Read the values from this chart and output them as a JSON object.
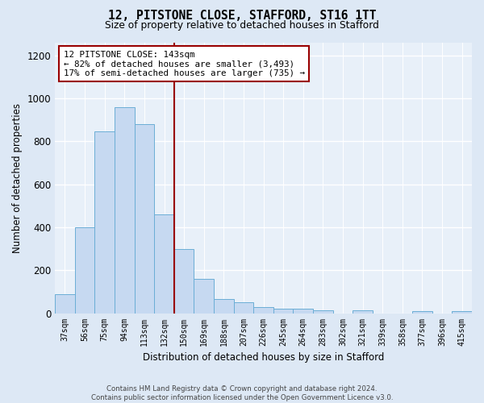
{
  "title1": "12, PITSTONE CLOSE, STAFFORD, ST16 1TT",
  "title2": "Size of property relative to detached houses in Stafford",
  "xlabel": "Distribution of detached houses by size in Stafford",
  "ylabel": "Number of detached properties",
  "bar_labels": [
    "37sqm",
    "56sqm",
    "75sqm",
    "94sqm",
    "113sqm",
    "132sqm",
    "150sqm",
    "169sqm",
    "188sqm",
    "207sqm",
    "226sqm",
    "245sqm",
    "264sqm",
    "283sqm",
    "302sqm",
    "321sqm",
    "339sqm",
    "358sqm",
    "377sqm",
    "396sqm",
    "415sqm"
  ],
  "bar_values": [
    90,
    400,
    845,
    960,
    880,
    460,
    300,
    160,
    65,
    50,
    30,
    20,
    20,
    15,
    0,
    12,
    0,
    0,
    10,
    0,
    10
  ],
  "bar_color": "#c6d9f1",
  "bar_edge_color": "#6baed6",
  "vline_x_index": 5.5,
  "vline_color": "#990000",
  "annotation_text": "12 PITSTONE CLOSE: 143sqm\n← 82% of detached houses are smaller (3,493)\n17% of semi-detached houses are larger (735) →",
  "annotation_box_color": "white",
  "annotation_box_edge": "#990000",
  "ylim": [
    0,
    1260
  ],
  "yticks": [
    0,
    200,
    400,
    600,
    800,
    1000,
    1200
  ],
  "footer": "Contains HM Land Registry data © Crown copyright and database right 2024.\nContains public sector information licensed under the Open Government Licence v3.0.",
  "bg_color": "#dde8f5",
  "plot_bg_color": "#e8f0f9",
  "grid_color": "#ffffff"
}
